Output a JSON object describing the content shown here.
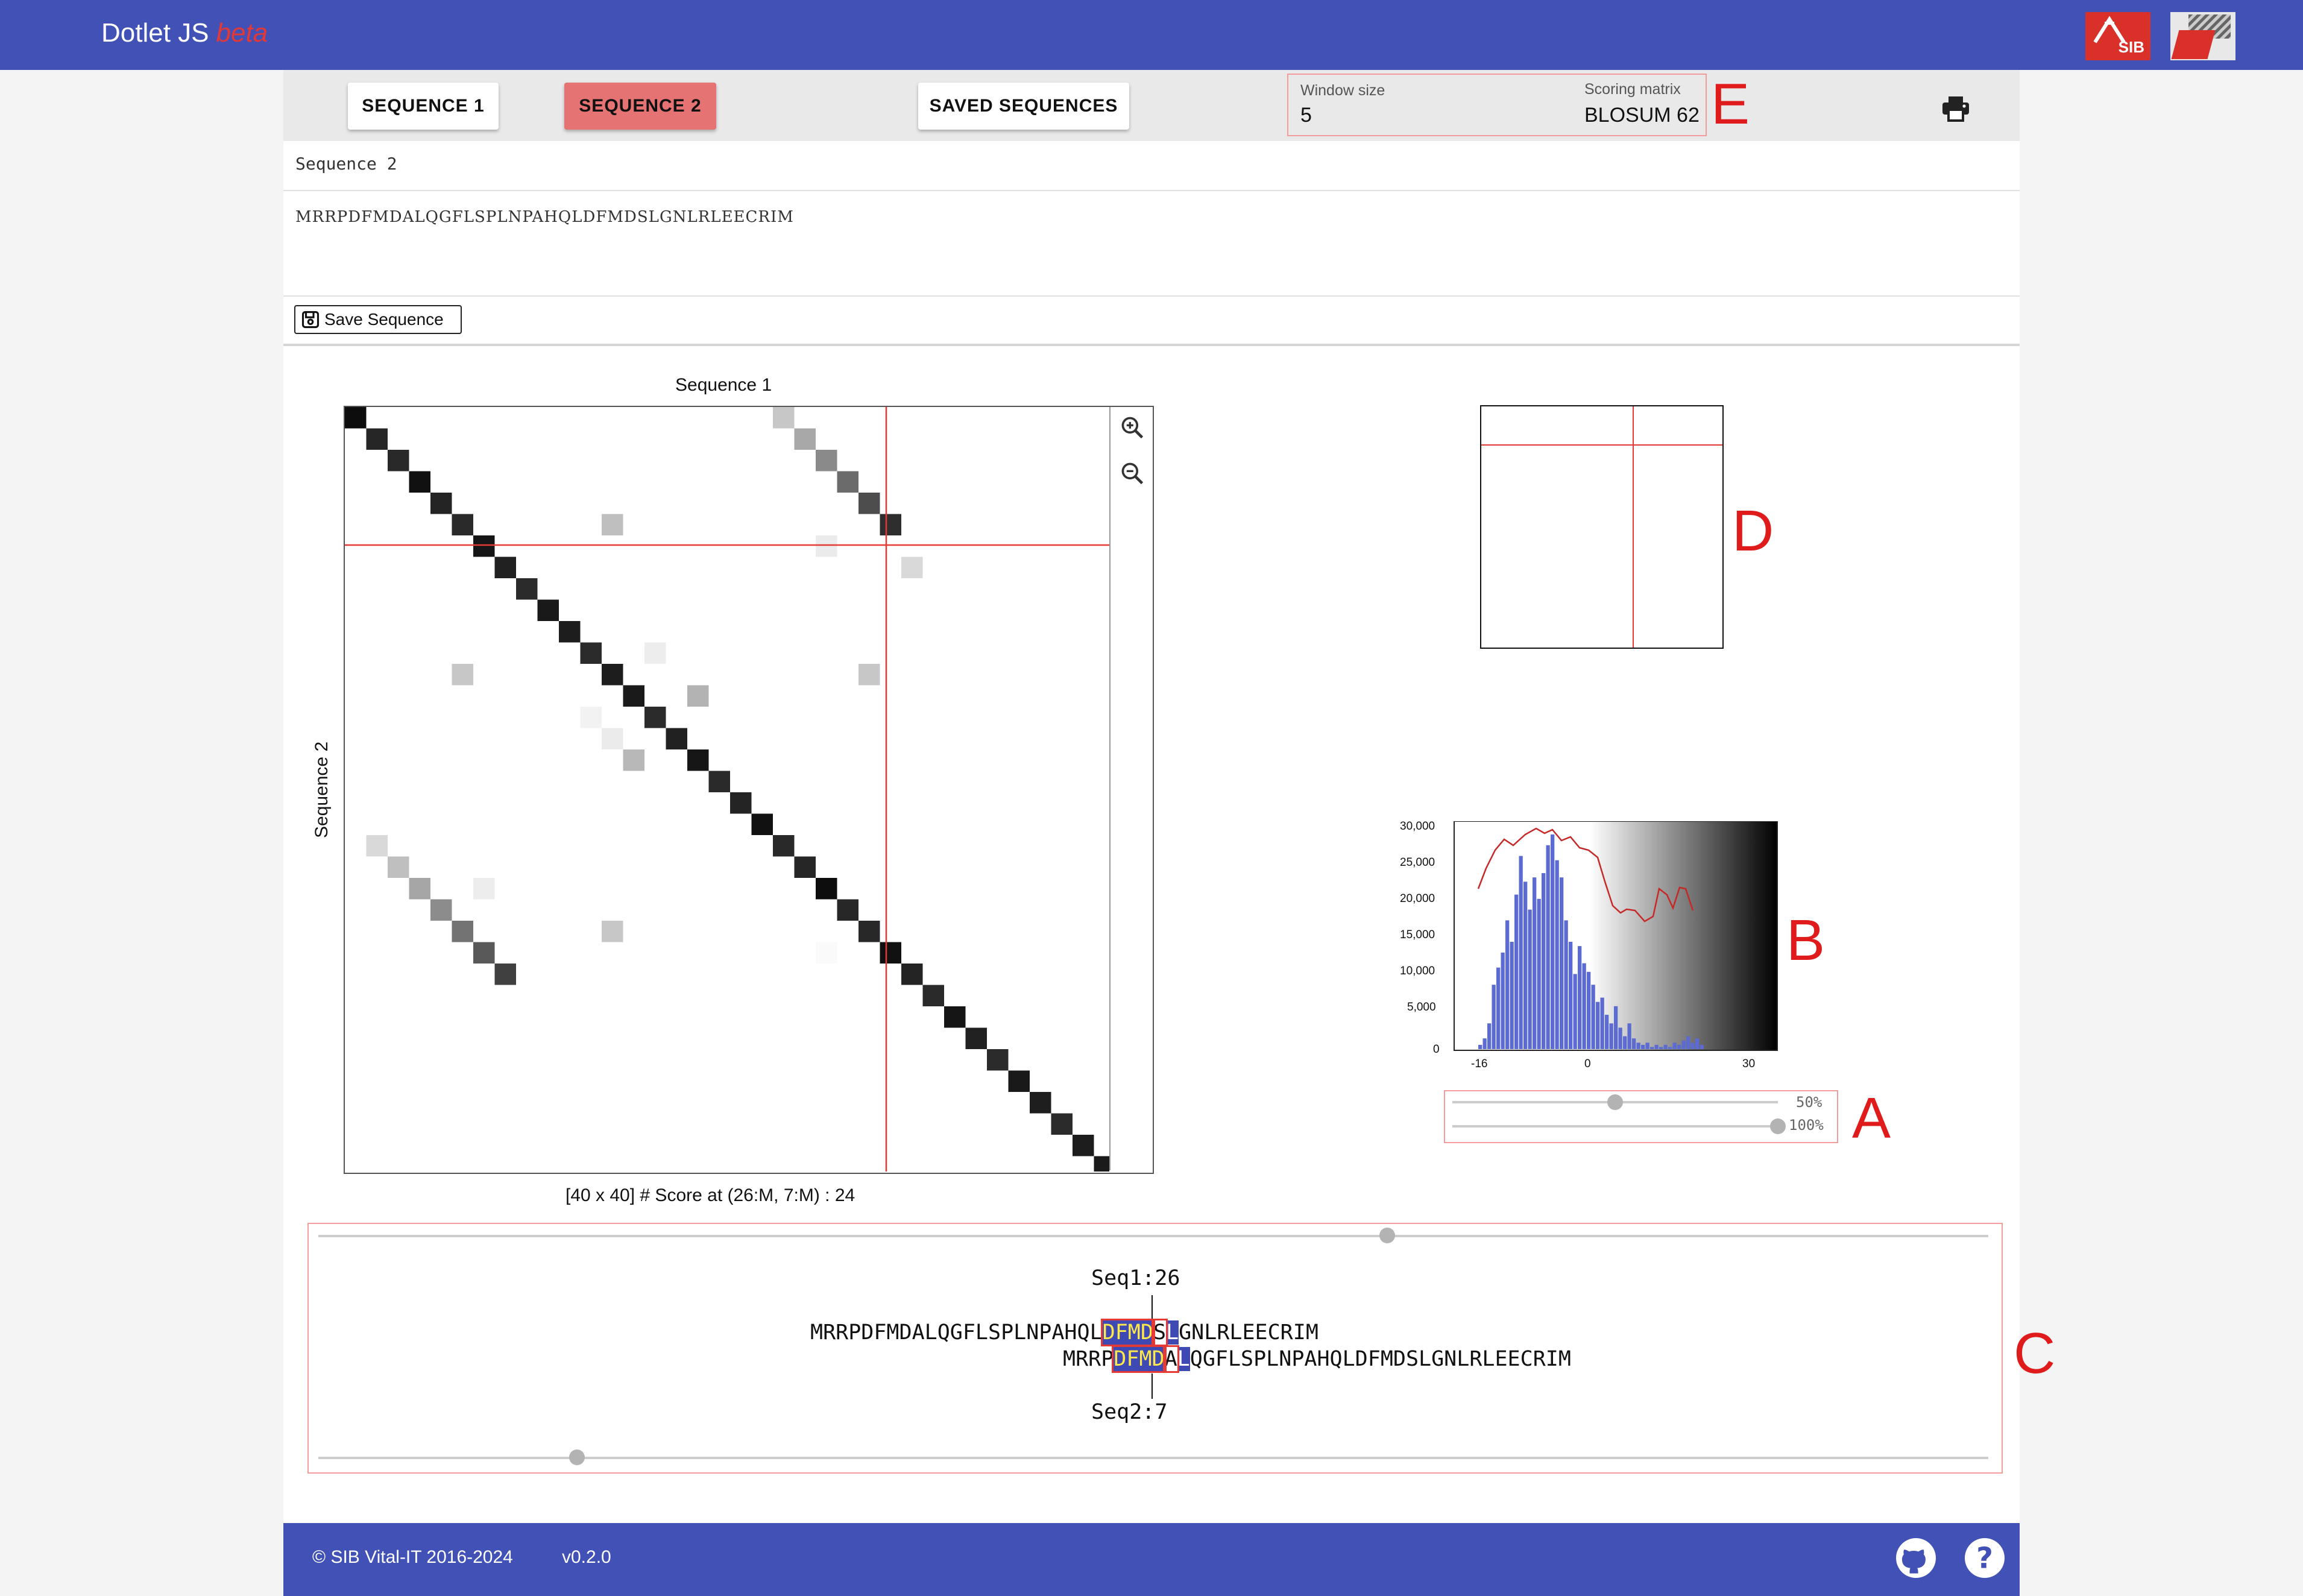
{
  "header": {
    "title": "Dotlet JS",
    "beta": "beta",
    "logo_sib_text": "SIB"
  },
  "toolbar": {
    "tabs": [
      {
        "label": "SEQUENCE 1",
        "active": false
      },
      {
        "label": "SEQUENCE 2",
        "active": true
      },
      {
        "label": "SAVED SEQUENCES",
        "active": false
      }
    ],
    "window_size_label": "Window size",
    "window_size_value": "5",
    "scoring_matrix_label": "Scoring matrix",
    "scoring_matrix_value": "BLOSUM 62",
    "print_icon": "printer-icon"
  },
  "sequence_panel": {
    "label": "Sequence 2",
    "value": "MRRPDFMDALQGFLSPLNPAHQLDFMDSLGNLRLEECRIM",
    "save_button": "Save Sequence"
  },
  "dotplot": {
    "x_title": "Sequence 1",
    "y_title": "Sequence 2",
    "size": 40,
    "crosshair": {
      "x": 26,
      "y": 7
    },
    "status": "[40 x 40] # Score at (26:M, 7:M) : 24",
    "zoom_in_icon": "zoom-in-icon",
    "zoom_out_icon": "zoom-out-icon"
  },
  "histogram": {
    "y_ticks": [
      "30,000",
      "25,000",
      "20,000",
      "15,000",
      "10,000",
      "5,000",
      "0"
    ],
    "x_ticks": [
      "-16",
      "0",
      "30"
    ]
  },
  "sliders": {
    "lower_pct": "50%",
    "upper_pct": "100%",
    "lower_value": 0.5,
    "upper_value": 1.0
  },
  "alignment": {
    "seq1_label": "Seq1:26",
    "seq2_label": "Seq2:7",
    "seq1_left": "MRRPDFMDALQGFLSPLNPAHQL",
    "seq1_window": "DFMD",
    "seq1_center": "S",
    "seq1_after": "L",
    "seq1_right": "GNLRLEECRIM",
    "seq2_left": "MRRP",
    "seq2_window": "DFMD",
    "seq2_center": "A",
    "seq2_after": "L",
    "seq2_right": "QGFLSPLNPAHQLDFMDSLGNLRLEECRIM",
    "top_slider_value": 0.64,
    "bottom_slider_value": 0.155
  },
  "markers": {
    "a": "A",
    "b": "B",
    "c": "C",
    "d": "D",
    "e": "E"
  },
  "footer": {
    "copyright": "© SIB Vital-IT 2016-2024",
    "version": "v0.2.0",
    "github_icon": "github-icon",
    "help_icon": "help-icon"
  },
  "colors": {
    "brand": "#4151b5",
    "active_tab": "#e57373",
    "highlight": "#3f49b4",
    "highlight_text": "#ffe94a",
    "crosshair": "#e53935",
    "histogram_bars": "#5c6bd1",
    "curve": "#c62828"
  }
}
